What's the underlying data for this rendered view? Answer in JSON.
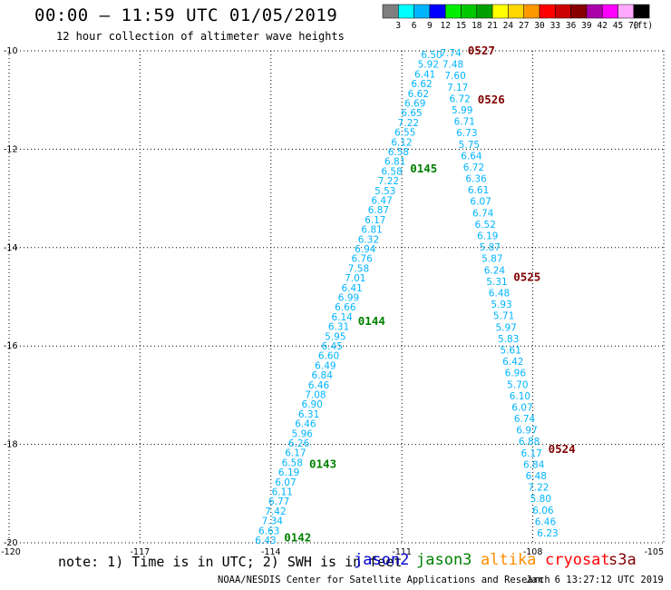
{
  "header": {
    "title": "00:00 – 11:59 UTC 01/05/2019",
    "subtitle": "12 hour collection of altimeter wave heights"
  },
  "legend": {
    "unit": "(ft)",
    "bins": [
      {
        "label": "3",
        "color": "#7f7f7f"
      },
      {
        "label": "6",
        "color": "#00ffff"
      },
      {
        "label": "9",
        "color": "#00b4ff"
      },
      {
        "label": "12",
        "color": "#0000ff"
      },
      {
        "label": "15",
        "color": "#00ee00"
      },
      {
        "label": "18",
        "color": "#00c800"
      },
      {
        "label": "21",
        "color": "#00a000"
      },
      {
        "label": "24",
        "color": "#ffff00"
      },
      {
        "label": "27",
        "color": "#ffd700"
      },
      {
        "label": "30",
        "color": "#ff9900"
      },
      {
        "label": "33",
        "color": "#ff0000"
      },
      {
        "label": "36",
        "color": "#cc0000"
      },
      {
        "label": "39",
        "color": "#880000"
      },
      {
        "label": "42",
        "color": "#aa00aa"
      },
      {
        "label": "45",
        "color": "#ff00ff"
      },
      {
        "label": "70",
        "color": "#ffaaff"
      },
      {
        "label": "",
        "color": "#000000"
      }
    ]
  },
  "axes": {
    "lat_labels": [
      "-10",
      "-12",
      "-14",
      "-16",
      "-18",
      "-20"
    ],
    "lon_labels": [
      "-120",
      "-117",
      "-114",
      "-111",
      "-108",
      "-105"
    ],
    "lat_range": [
      -20,
      -10
    ],
    "lon_range": [
      -120,
      -105
    ],
    "grid": "dotted"
  },
  "colors": {
    "wave_value": "#00b4ff",
    "pass_jason3": "#008000",
    "pass_s3a": "#800000"
  },
  "track_west": {
    "values": [
      "6.43",
      "6.63",
      "7.34",
      "7.42",
      "6.77",
      "6.11",
      "6.07",
      "6.19",
      "6.58",
      "6.17",
      "6.26",
      "5.96",
      "6.46",
      "6.31",
      "6.90",
      "7.08",
      "6.46",
      "6.84",
      "6.49",
      "6.60",
      "6.45",
      "5.95",
      "6.31",
      "6.14",
      "6.66",
      "6.99",
      "6.41",
      "7.01",
      "7.58",
      "6.76",
      "6.94",
      "6.32",
      "6.81",
      "6.17",
      "6.87",
      "6.47",
      "5.53",
      "7.22",
      "6.58",
      "6.81",
      "6.58",
      "6.12",
      "6.55",
      "7.22",
      "6.65",
      "6.69",
      "6.62",
      "6.62",
      "6.41",
      "5.92",
      "6.50"
    ],
    "labels": [
      {
        "text": "0142",
        "lat": -19.9
      },
      {
        "text": "0143",
        "lat": -18.4
      },
      {
        "text": "0144",
        "lat": -15.5
      },
      {
        "text": "0145",
        "lat": -12.4
      }
    ]
  },
  "track_east": {
    "values": [
      "6.23",
      "6.46",
      "6.06",
      "5.80",
      "7.22",
      "6.48",
      "6.84",
      "6.17",
      "6.88",
      "6.97",
      "6.74",
      "6.07",
      "6.10",
      "5.70",
      "6.96",
      "6.42",
      "5.61",
      "5.83",
      "5.97",
      "5.71",
      "5.93",
      "6.48",
      "5.31",
      "6.24",
      "5.87",
      "5.87",
      "6.19",
      "6.52",
      "6.74",
      "6.07",
      "6.61",
      "6.36",
      "6.72",
      "6.64",
      "5.75",
      "6.73",
      "6.71",
      "5.99",
      "6.72",
      "7.17",
      "7.60",
      "7.48",
      "7.74"
    ],
    "labels": [
      {
        "text": "0527",
        "lat": -10.0
      },
      {
        "text": "0526",
        "lat": -11.0
      },
      {
        "text": "0525",
        "lat": -14.6
      },
      {
        "text": "0524",
        "lat": -18.1
      }
    ]
  },
  "note": "note: 1) Time is in UTC; 2) SWH is in feet",
  "missions": [
    {
      "name": "jason2",
      "color": "#0000cc"
    },
    {
      "name": "jason3",
      "color": "#008000"
    },
    {
      "name": "altika",
      "color": "#ff8c00"
    },
    {
      "name": "cryosat",
      "color": "#ff0000"
    },
    {
      "name": "s3a",
      "color": "#800000"
    }
  ],
  "credit": "NOAA/NESDIS Center for Satellite Applications and Research",
  "credit_time": "Jan  6 13:27:12 UTC 2019"
}
